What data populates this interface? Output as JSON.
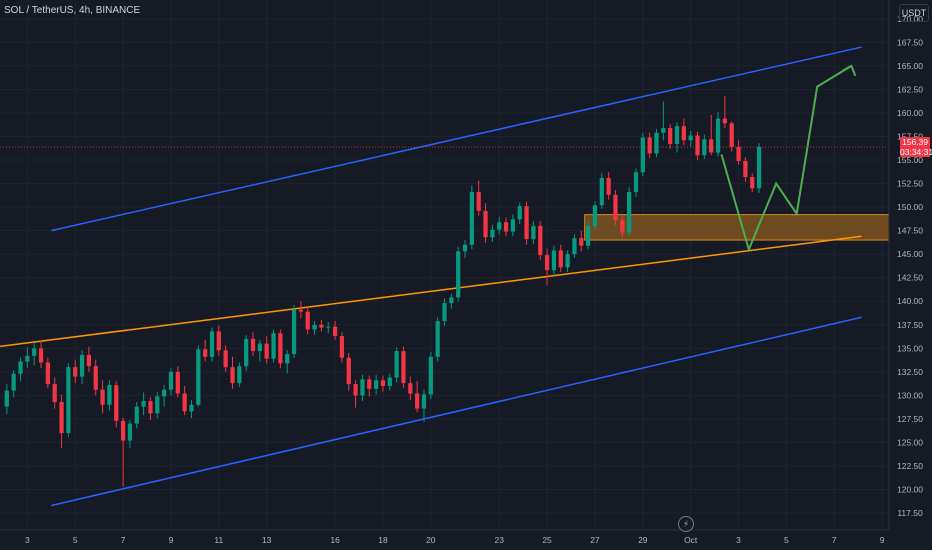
{
  "symbol": "SOL / TetherUS, 4h, BINANCE",
  "currency": "USDT",
  "last_price": "156.39",
  "countdown": "03:34:31",
  "event_icon": "lightning-bolt-icon",
  "colors": {
    "background": "#161a25",
    "grid": "#1f2330",
    "up": "#089981",
    "down": "#f23645",
    "channel": "#2962ff",
    "trendline": "#ff9800",
    "projection": "#4caf50",
    "zone_fill": "#b8731c",
    "price_line": "#f23645"
  },
  "chart_data": {
    "type": "candlestick",
    "title": "",
    "xlabel": "",
    "ylabel": "",
    "ylim": [
      115.7,
      172.0
    ],
    "xlim": [
      -1,
      129
    ],
    "y_ticks": [
      "117.50",
      "120.00",
      "122.50",
      "125.00",
      "127.50",
      "130.00",
      "132.50",
      "135.00",
      "137.50",
      "140.00",
      "142.50",
      "145.00",
      "147.50",
      "150.00",
      "152.50",
      "155.00",
      "157.50",
      "160.00",
      "162.50",
      "165.00",
      "167.50",
      "170.00"
    ],
    "x_ticks": [
      {
        "label": "3",
        "bar": 3
      },
      {
        "label": "5",
        "bar": 10
      },
      {
        "label": "7",
        "bar": 17
      },
      {
        "label": "9",
        "bar": 24
      },
      {
        "label": "11",
        "bar": 31
      },
      {
        "label": "13",
        "bar": 38
      },
      {
        "label": "16",
        "bar": 48
      },
      {
        "label": "18",
        "bar": 55
      },
      {
        "label": "20",
        "bar": 62
      },
      {
        "label": "23",
        "bar": 72
      },
      {
        "label": "25",
        "bar": 79
      },
      {
        "label": "27",
        "bar": 86
      },
      {
        "label": "29",
        "bar": 93
      },
      {
        "label": "Oct",
        "bar": 100
      },
      {
        "label": "3",
        "bar": 107
      },
      {
        "label": "5",
        "bar": 114
      },
      {
        "label": "7",
        "bar": 121
      },
      {
        "label": "9",
        "bar": 128
      }
    ],
    "candles": [
      [
        128.8,
        131.2,
        128.0,
        130.5
      ],
      [
        130.5,
        132.7,
        129.8,
        132.3
      ],
      [
        132.3,
        134.0,
        131.5,
        133.6
      ],
      [
        133.6,
        135.1,
        132.9,
        134.2
      ],
      [
        134.2,
        135.6,
        133.2,
        135.0
      ],
      [
        135.0,
        135.8,
        132.9,
        133.5
      ],
      [
        133.5,
        134.0,
        130.8,
        131.2
      ],
      [
        131.2,
        131.9,
        128.6,
        129.3
      ],
      [
        129.3,
        130.1,
        124.4,
        126.0
      ],
      [
        126.0,
        133.4,
        125.6,
        133.0
      ],
      [
        133.0,
        133.8,
        131.3,
        132.0
      ],
      [
        132.0,
        134.8,
        131.2,
        134.3
      ],
      [
        134.3,
        135.2,
        132.5,
        133.1
      ],
      [
        133.1,
        133.8,
        130.0,
        130.6
      ],
      [
        130.6,
        131.6,
        128.1,
        129.0
      ],
      [
        129.0,
        131.6,
        128.4,
        131.1
      ],
      [
        131.1,
        131.5,
        126.6,
        127.3
      ],
      [
        127.3,
        127.6,
        120.3,
        125.2
      ],
      [
        125.2,
        127.4,
        124.4,
        127.0
      ],
      [
        127.0,
        129.3,
        126.5,
        128.8
      ],
      [
        128.8,
        130.3,
        127.9,
        129.4
      ],
      [
        129.4,
        129.8,
        127.4,
        128.1
      ],
      [
        128.1,
        130.4,
        127.6,
        129.9
      ],
      [
        129.9,
        131.1,
        128.8,
        130.6
      ],
      [
        130.6,
        132.9,
        130.0,
        132.5
      ],
      [
        132.5,
        133.1,
        129.8,
        130.2
      ],
      [
        130.2,
        131.0,
        127.9,
        128.3
      ],
      [
        128.3,
        129.5,
        127.6,
        129.0
      ],
      [
        129.0,
        135.3,
        128.8,
        134.9
      ],
      [
        134.9,
        135.9,
        133.6,
        134.1
      ],
      [
        134.1,
        137.2,
        133.6,
        136.8
      ],
      [
        136.8,
        137.4,
        134.2,
        134.8
      ],
      [
        134.8,
        135.3,
        132.5,
        133.0
      ],
      [
        133.0,
        134.1,
        130.7,
        131.3
      ],
      [
        131.3,
        133.5,
        130.9,
        133.1
      ],
      [
        133.1,
        136.4,
        132.6,
        136.0
      ],
      [
        136.0,
        136.7,
        134.2,
        134.7
      ],
      [
        134.7,
        135.9,
        133.6,
        135.5
      ],
      [
        135.5,
        136.3,
        133.4,
        133.9
      ],
      [
        133.9,
        137.0,
        133.5,
        136.6
      ],
      [
        136.6,
        137.0,
        132.9,
        133.4
      ],
      [
        133.4,
        134.8,
        132.3,
        134.4
      ],
      [
        134.4,
        139.6,
        134.0,
        139.1
      ],
      [
        139.1,
        140.0,
        138.2,
        138.9
      ],
      [
        138.9,
        139.4,
        136.5,
        137.0
      ],
      [
        137.0,
        137.9,
        136.4,
        137.5
      ],
      [
        137.5,
        138.0,
        136.8,
        137.2
      ],
      [
        137.2,
        137.8,
        136.6,
        137.3
      ],
      [
        137.3,
        137.9,
        135.9,
        136.3
      ],
      [
        136.3,
        136.7,
        133.5,
        134.0
      ],
      [
        134.0,
        134.5,
        130.5,
        131.2
      ],
      [
        131.2,
        131.6,
        128.7,
        130.0
      ],
      [
        130.0,
        132.2,
        129.4,
        131.7
      ],
      [
        131.7,
        132.1,
        129.9,
        130.7
      ],
      [
        130.7,
        132.2,
        130.1,
        131.6
      ],
      [
        131.6,
        132.1,
        130.4,
        131.0
      ],
      [
        131.0,
        132.3,
        130.5,
        131.9
      ],
      [
        131.9,
        135.1,
        131.4,
        134.7
      ],
      [
        134.7,
        135.2,
        130.8,
        131.3
      ],
      [
        131.3,
        132.0,
        129.5,
        130.2
      ],
      [
        130.2,
        131.5,
        128.2,
        128.6
      ],
      [
        128.6,
        130.6,
        127.2,
        130.1
      ],
      [
        130.1,
        134.6,
        129.6,
        134.1
      ],
      [
        134.1,
        138.3,
        133.6,
        137.9
      ],
      [
        137.9,
        140.3,
        137.4,
        139.8
      ],
      [
        139.8,
        140.8,
        139.2,
        140.4
      ],
      [
        140.4,
        145.8,
        140.0,
        145.3
      ],
      [
        145.3,
        146.5,
        144.6,
        146.0
      ],
      [
        146.0,
        152.3,
        145.5,
        151.6
      ],
      [
        151.6,
        152.8,
        149.1,
        149.6
      ],
      [
        149.6,
        150.4,
        146.2,
        146.8
      ],
      [
        146.8,
        148.1,
        146.3,
        147.6
      ],
      [
        147.6,
        149.0,
        147.1,
        148.4
      ],
      [
        148.4,
        148.9,
        146.9,
        147.4
      ],
      [
        147.4,
        149.2,
        146.9,
        148.7
      ],
      [
        148.7,
        150.5,
        148.2,
        150.1
      ],
      [
        150.1,
        150.6,
        146.0,
        146.6
      ],
      [
        146.6,
        148.5,
        146.1,
        148.0
      ],
      [
        148.0,
        148.5,
        144.4,
        144.9
      ],
      [
        144.9,
        145.6,
        141.7,
        143.3
      ],
      [
        143.3,
        145.9,
        142.7,
        145.4
      ],
      [
        145.4,
        146.0,
        143.1,
        143.6
      ],
      [
        143.6,
        145.4,
        143.1,
        145.0
      ],
      [
        145.0,
        147.1,
        144.6,
        146.7
      ],
      [
        146.7,
        147.5,
        145.3,
        145.9
      ],
      [
        145.9,
        148.5,
        145.5,
        148.0
      ],
      [
        148.0,
        150.6,
        147.6,
        150.2
      ],
      [
        150.2,
        153.6,
        149.8,
        153.1
      ],
      [
        153.1,
        153.7,
        150.8,
        151.3
      ],
      [
        151.3,
        151.8,
        148.1,
        148.6
      ],
      [
        148.6,
        149.3,
        146.8,
        147.3
      ],
      [
        147.3,
        152.1,
        146.9,
        151.6
      ],
      [
        151.6,
        154.1,
        151.1,
        153.7
      ],
      [
        153.7,
        157.9,
        153.3,
        157.4
      ],
      [
        157.4,
        157.9,
        155.2,
        155.7
      ],
      [
        155.7,
        158.3,
        155.3,
        157.9
      ],
      [
        157.9,
        161.2,
        157.1,
        158.4
      ],
      [
        158.4,
        158.8,
        156.2,
        156.7
      ],
      [
        156.7,
        159.0,
        155.8,
        158.6
      ],
      [
        158.6,
        159.4,
        156.6,
        157.1
      ],
      [
        157.1,
        158.1,
        156.4,
        157.6
      ],
      [
        157.6,
        158.0,
        155.0,
        155.5
      ],
      [
        155.5,
        157.7,
        155.1,
        157.2
      ],
      [
        157.2,
        159.8,
        155.5,
        155.8
      ],
      [
        155.8,
        160.1,
        155.4,
        159.4
      ],
      [
        159.4,
        161.8,
        158.4,
        158.9
      ],
      [
        158.9,
        159.1,
        155.9,
        156.4
      ],
      [
        156.4,
        157.1,
        154.5,
        154.9
      ],
      [
        154.9,
        155.3,
        152.7,
        153.2
      ],
      [
        153.2,
        153.6,
        151.6,
        152.0
      ],
      [
        152.0,
        156.8,
        151.5,
        156.4
      ]
    ],
    "lines": [
      {
        "name": "",
        "kind": "channel-upper",
        "x": [
          6.5,
          125
        ],
        "y": [
          147.5,
          167.0
        ]
      },
      {
        "name": "",
        "kind": "channel-lower",
        "x": [
          6.5,
          125
        ],
        "y": [
          118.3,
          138.3
        ]
      },
      {
        "name": "",
        "kind": "trendline",
        "x": [
          -1,
          125
        ],
        "y": [
          135.2,
          146.9
        ]
      },
      {
        "name": "",
        "kind": "projection",
        "x": [
          104.5,
          108.5,
          112.5,
          115.5,
          118.5,
          123.5
        ],
        "y": [
          155.6,
          145.5,
          152.5,
          149.3,
          162.8,
          165.0
        ]
      }
    ],
    "zones": [
      {
        "x": [
          84.5,
          129
        ],
        "y": [
          146.5,
          149.2
        ]
      }
    ],
    "last_price_line": 156.39
  }
}
